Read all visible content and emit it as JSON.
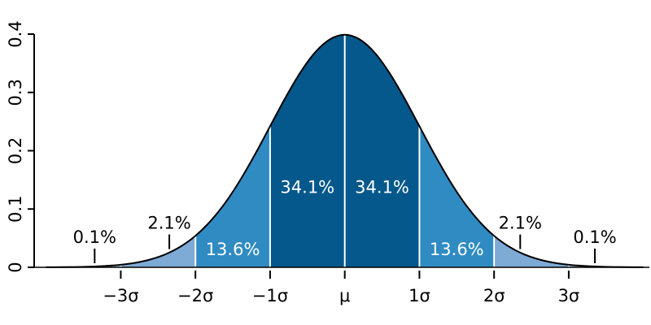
{
  "chart_data": {
    "type": "area",
    "x": [
      -4,
      -3.8,
      -3.6,
      -3.4,
      -3.2,
      -3,
      -2.8,
      -2.6,
      -2.4,
      -2.2,
      -2,
      -1.8,
      -1.6,
      -1.4,
      -1.2,
      -1,
      -0.8,
      -0.6,
      -0.4,
      -0.2,
      0,
      0.2,
      0.4,
      0.6,
      0.8,
      1,
      1.2,
      1.4,
      1.6,
      1.8,
      2,
      2.2,
      2.4,
      2.6,
      2.8,
      3,
      3.2,
      3.4,
      3.6,
      3.8,
      4
    ],
    "values": [
      0.0001,
      0.0003,
      0.0006,
      0.0012,
      0.0024,
      0.0044,
      0.0079,
      0.0136,
      0.0224,
      0.0355,
      0.054,
      0.079,
      0.1109,
      0.1497,
      0.1942,
      0.242,
      0.2897,
      0.3332,
      0.3683,
      0.391,
      0.3989,
      0.391,
      0.3683,
      0.3332,
      0.2897,
      0.242,
      0.1942,
      0.1497,
      0.1109,
      0.079,
      0.054,
      0.0355,
      0.0224,
      0.0136,
      0.0079,
      0.0044,
      0.0024,
      0.0012,
      0.0006,
      0.0003,
      0.0001
    ],
    "color": "#000000",
    "xlim": [
      -4.16,
      4.08
    ],
    "ylim": [
      0,
      0.4
    ],
    "xticks": [
      {
        "value": -3,
        "label": "−3σ"
      },
      {
        "value": -2,
        "label": "−2σ"
      },
      {
        "value": -1,
        "label": "−1σ"
      },
      {
        "value": 0,
        "label": "μ"
      },
      {
        "value": 1,
        "label": "1σ"
      },
      {
        "value": 2,
        "label": "2σ"
      },
      {
        "value": 3,
        "label": "3σ"
      }
    ],
    "yticks": [
      0,
      0.1,
      0.2,
      0.3,
      0.4
    ],
    "regions": {
      "edges": [
        -4,
        -3,
        -2,
        -1,
        0,
        1,
        2,
        3,
        4
      ],
      "values": [
        0.1,
        2.1,
        13.6,
        34.1,
        34.1,
        13.6,
        2.1,
        0.1
      ],
      "value_labels": [
        "0.1%",
        "2.1%",
        "13.6%",
        "34.1%",
        "34.1%",
        "13.6%",
        "2.1%",
        "0.1%"
      ],
      "colors": [
        "#a9c9e6",
        "#7eaad6",
        "#2f8bc2",
        "#04588b",
        "#04588b",
        "#2f8bc2",
        "#7eaad6",
        "#a9c9e6"
      ]
    }
  }
}
